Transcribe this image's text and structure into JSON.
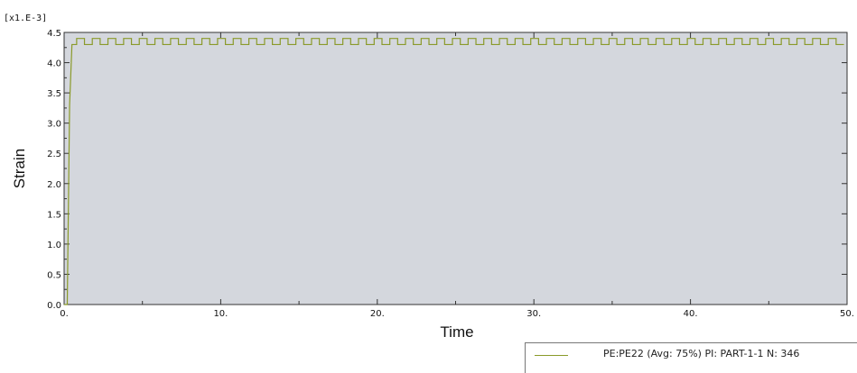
{
  "chart_data": {
    "type": "line",
    "xlabel": "Time",
    "ylabel": "Strain",
    "y_multiplier": "[x1.E-3]",
    "xlim": [
      0,
      50
    ],
    "ylim": [
      0,
      4.5
    ],
    "x_ticks": [
      0,
      10,
      20,
      30,
      40,
      50
    ],
    "x_tick_labels": [
      "0.",
      "10.",
      "20.",
      "30.",
      "40.",
      "50."
    ],
    "y_ticks": [
      0,
      0.5,
      1.0,
      1.5,
      2.0,
      2.5,
      3.0,
      3.5,
      4.0,
      4.5
    ],
    "y_tick_labels": [
      "0.0",
      "0.5",
      "1.0",
      "1.5",
      "2.0",
      "2.5",
      "3.0",
      "3.5",
      "4.0",
      "4.5"
    ],
    "grid": false,
    "legend_position": "bottom-right",
    "series": [
      {
        "name": "PE:PE22 (Avg: 75%) PI: PART-1-1 N: 346",
        "color": "#8a9a2a",
        "ramp": [
          [
            0,
            0
          ],
          [
            0.2,
            0
          ],
          [
            0.35,
            3.3
          ],
          [
            0.5,
            4.3
          ],
          [
            0.8,
            4.3
          ]
        ],
        "oscillation": {
          "period": 1.0,
          "low": 4.3,
          "high": 4.4,
          "x_start": 0.8,
          "x_end": 50
        }
      }
    ],
    "background_color": "#d4d7dd"
  }
}
